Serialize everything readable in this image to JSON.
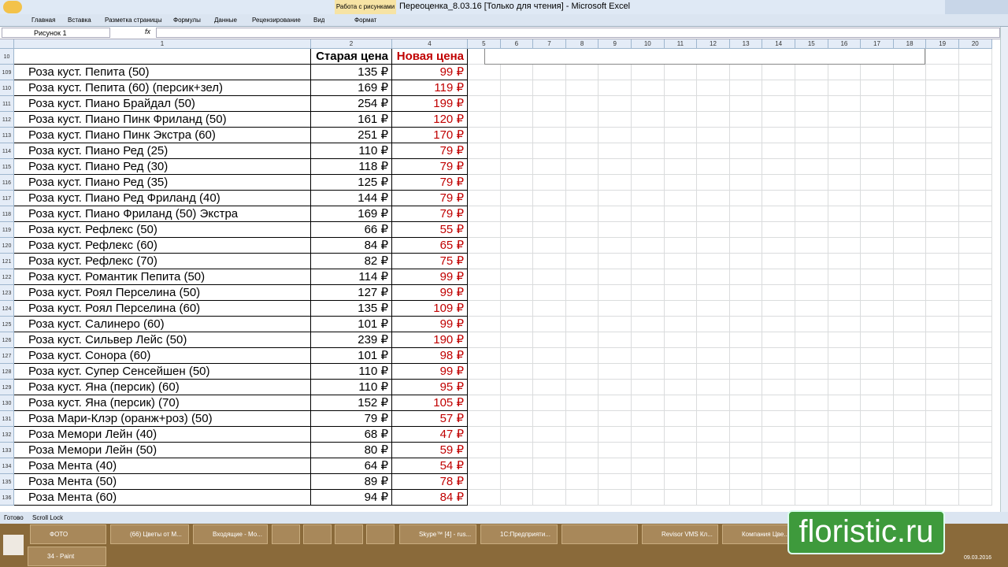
{
  "window": {
    "title": "Переоценка_8.03.16  [Только для чтения] - Microsoft Excel",
    "context_tab": "Работа с рисунками"
  },
  "ribbon_tabs": [
    "Главная",
    "Вставка",
    "Разметка страницы",
    "Формулы",
    "Данные",
    "Рецензирование",
    "Вид",
    "Формат"
  ],
  "name_box": "Рисунок 1",
  "formula_label": "fx",
  "column_headers": [
    "1",
    "2",
    "4",
    "5",
    "6",
    "7",
    "8",
    "9",
    "10",
    "11",
    "12",
    "13",
    "14",
    "15",
    "16",
    "17",
    "18",
    "19",
    "20"
  ],
  "header_row": {
    "row_number": "10",
    "old_price": "Старая цена",
    "new_price": "Новая цена"
  },
  "rows": [
    {
      "row_number": "109",
      "name": "Роза куст. Пепита (50)",
      "old_price": "135 ₽",
      "new_price": "99 ₽"
    },
    {
      "row_number": "110",
      "name": "Роза куст. Пепита (60) (персик+зел)",
      "old_price": "169 ₽",
      "new_price": "119 ₽"
    },
    {
      "row_number": "111",
      "name": "Роза куст. Пиано Брайдал (50)",
      "old_price": "254 ₽",
      "new_price": "199 ₽"
    },
    {
      "row_number": "112",
      "name": "Роза куст. Пиано Пинк Фриланд (50)",
      "old_price": "161 ₽",
      "new_price": "120 ₽"
    },
    {
      "row_number": "113",
      "name": "Роза куст. Пиано Пинк Экстра (60)",
      "old_price": "251 ₽",
      "new_price": "170 ₽"
    },
    {
      "row_number": "114",
      "name": "Роза куст. Пиано Ред (25)",
      "old_price": "110 ₽",
      "new_price": "79 ₽"
    },
    {
      "row_number": "115",
      "name": "Роза куст. Пиано Ред (30)",
      "old_price": "118 ₽",
      "new_price": "79 ₽"
    },
    {
      "row_number": "116",
      "name": "Роза куст. Пиано Ред (35)",
      "old_price": "125 ₽",
      "new_price": "79 ₽"
    },
    {
      "row_number": "117",
      "name": "Роза куст. Пиано Ред Фриланд (40)",
      "old_price": "144 ₽",
      "new_price": "79 ₽"
    },
    {
      "row_number": "118",
      "name": "Роза куст. Пиано Фриланд (50) Экстра",
      "old_price": "169 ₽",
      "new_price": "79 ₽"
    },
    {
      "row_number": "119",
      "name": "Роза куст. Рефлекс (50)",
      "old_price": "66 ₽",
      "new_price": "55 ₽"
    },
    {
      "row_number": "120",
      "name": "Роза куст. Рефлекс (60)",
      "old_price": "84 ₽",
      "new_price": "65 ₽"
    },
    {
      "row_number": "121",
      "name": "Роза куст. Рефлекс (70)",
      "old_price": "82 ₽",
      "new_price": "75 ₽"
    },
    {
      "row_number": "122",
      "name": "Роза куст. Романтик Пепита (50)",
      "old_price": "114 ₽",
      "new_price": "99 ₽"
    },
    {
      "row_number": "123",
      "name": "Роза куст. Роял Перселина (50)",
      "old_price": "127 ₽",
      "new_price": "99 ₽"
    },
    {
      "row_number": "124",
      "name": "Роза куст. Роял Перселина (60)",
      "old_price": "135 ₽",
      "new_price": "109 ₽"
    },
    {
      "row_number": "125",
      "name": "Роза куст. Салинеро (60)",
      "old_price": "101 ₽",
      "new_price": "99 ₽"
    },
    {
      "row_number": "126",
      "name": "Роза куст. Сильвер Лейс (50)",
      "old_price": "239 ₽",
      "new_price": "190 ₽"
    },
    {
      "row_number": "127",
      "name": "Роза куст. Сонора (60)",
      "old_price": "101 ₽",
      "new_price": "98 ₽"
    },
    {
      "row_number": "128",
      "name": "Роза куст. Супер Сенсейшен (50)",
      "old_price": "110 ₽",
      "new_price": "99 ₽"
    },
    {
      "row_number": "129",
      "name": "Роза куст. Яна (персик) (60)",
      "old_price": "110 ₽",
      "new_price": "95 ₽"
    },
    {
      "row_number": "130",
      "name": "Роза куст. Яна (персик) (70)",
      "old_price": "152 ₽",
      "new_price": "105 ₽"
    },
    {
      "row_number": "131",
      "name": "Роза Мари-Клэр (оранж+роз) (50)",
      "old_price": "79 ₽",
      "new_price": "57 ₽"
    },
    {
      "row_number": "132",
      "name": "Роза Мемори Лейн (40)",
      "old_price": "68 ₽",
      "new_price": "47 ₽"
    },
    {
      "row_number": "133",
      "name": "Роза Мемори Лейн (50)",
      "old_price": "80 ₽",
      "new_price": "59 ₽"
    },
    {
      "row_number": "134",
      "name": "Роза Мента (40)",
      "old_price": "64 ₽",
      "new_price": "54 ₽"
    },
    {
      "row_number": "135",
      "name": "Роза Мента (50)",
      "old_price": "89 ₽",
      "new_price": "78 ₽"
    },
    {
      "row_number": "136",
      "name": "Роза Мента (60)",
      "old_price": "94 ₽",
      "new_price": "84 ₽"
    }
  ],
  "status_bar": [
    "Готово",
    "Scroll Lock"
  ],
  "taskbar": {
    "items": [
      "ФОТО",
      "(66) Цветы от М...",
      "Входящие - Мо...",
      "Skype™ [4] - rus...",
      "1С:Предприяти...",
      "Revisor VMS Кл...",
      "Компания Цве...",
      "34 - Paint"
    ],
    "date": "09.03.2016"
  },
  "watermark": "floristic.ru"
}
